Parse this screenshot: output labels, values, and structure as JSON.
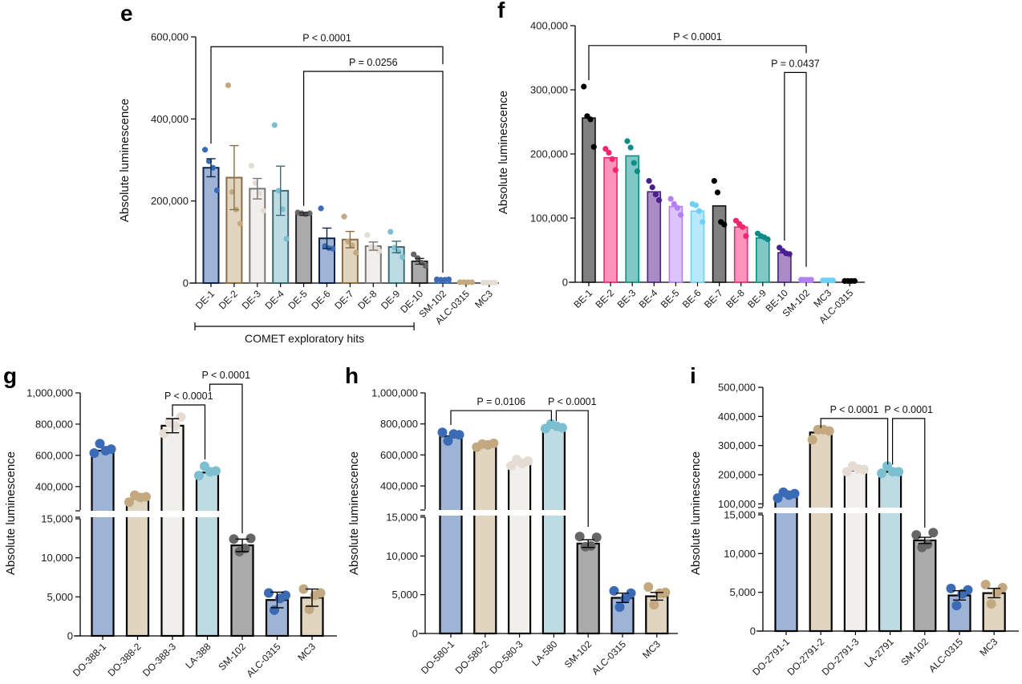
{
  "chart_data": [
    {
      "panel": "e",
      "type": "bar",
      "ylabel": "Absolute luminescence",
      "ylim": [
        0,
        600000
      ],
      "yticks": [
        0,
        200000,
        400000,
        600000
      ],
      "ytick_labels": [
        "0",
        "200,000",
        "400,000",
        "600,000"
      ],
      "categories": [
        "DE-1",
        "DE-2",
        "DE-3",
        "DE-4",
        "DE-5",
        "DE-6",
        "DE-7",
        "DE-8",
        "DE-9",
        "DE-10",
        "SM-102",
        "ALC-0315",
        "MC3"
      ],
      "values": [
        281000,
        257000,
        230000,
        225000,
        168000,
        109000,
        106000,
        90000,
        88000,
        53000,
        8000,
        2000,
        1000
      ],
      "errors": [
        22000,
        78000,
        25000,
        60000,
        3000,
        25000,
        20000,
        10000,
        14000,
        7000,
        0,
        0,
        0
      ],
      "points": [
        [
          325000,
          297000,
          281000,
          226000
        ],
        [
          482000,
          222000,
          179000,
          145000
        ],
        [
          286000,
          244000,
          218000,
          176000
        ],
        [
          385000,
          225000,
          180000,
          108000
        ],
        [
          172000,
          170000,
          168000,
          170000
        ],
        [
          182000,
          90000,
          85000,
          84000
        ],
        [
          162000,
          101000,
          92000,
          74000
        ],
        [
          117000,
          88000,
          85000,
          78000
        ],
        [
          125000,
          86000,
          77000,
          63000
        ],
        [
          70000,
          61000,
          50000,
          42000
        ],
        [
          9000,
          8000,
          8000,
          9000
        ],
        [
          2000,
          2000,
          2000,
          2000
        ],
        [
          1000,
          1000,
          1000,
          1000
        ]
      ],
      "fills": [
        "#9db4d6",
        "#e2d5bf",
        "#f1efeb",
        "#bcdbe3",
        "#aaaaaa",
        "#9db4d6",
        "#e2d5bf",
        "#f1efeb",
        "#bcdbe3",
        "#aaaaaa",
        "#9db4d6",
        "#e2d5bf",
        "#f1efeb"
      ],
      "strokes": [
        "#0d2347",
        "#8a6f46",
        "#777777",
        "#3f6b75",
        "#222222",
        "#0d2347",
        "#8a6f46",
        "#777777",
        "#3f6b75",
        "#222222",
        "#3b6bb5",
        "#c4a980",
        "#e5ddd4"
      ],
      "dots": [
        "#3b6bb5",
        "#c4a980",
        "#e5ddd4",
        "#7bbfd0",
        "#666666",
        "#3b6bb5",
        "#c4a980",
        "#e5ddd4",
        "#7bbfd0",
        "#666666",
        "#3b6bb5",
        "#c4a980",
        "#e5ddd4"
      ],
      "brackets": [
        {
          "from": 0,
          "to": 10,
          "y": 576000,
          "legs": [
            340000,
            533000
          ],
          "label": "P < 0.0001"
        },
        {
          "from": 4,
          "to": 10,
          "y": 516000,
          "legs": [
            188000,
            25000
          ],
          "label": "P = 0.0256"
        }
      ],
      "group": {
        "from": 0,
        "to": 9,
        "label": "COMET exploratory hits"
      }
    },
    {
      "panel": "f",
      "type": "bar",
      "ylabel": "Absolute luminescence",
      "ylim": [
        0,
        400000
      ],
      "yticks": [
        0,
        100000,
        200000,
        300000,
        400000
      ],
      "ytick_labels": [
        "0",
        "100,000",
        "200,000",
        "300,000",
        "400,000"
      ],
      "categories": [
        "BE-1",
        "BE-2",
        "BE-3",
        "BE-4",
        "BE-5",
        "BE-6",
        "BE-7",
        "BE-8",
        "BE-9",
        "BE-10",
        "SM-102",
        "MC3",
        "ALC-0315"
      ],
      "values": [
        256000,
        194000,
        197000,
        141000,
        118000,
        111000,
        119000,
        86000,
        69000,
        46000,
        4000,
        3000,
        2000
      ],
      "errors": [
        0,
        0,
        0,
        0,
        0,
        0,
        0,
        0,
        0,
        0,
        0,
        0,
        0
      ],
      "points": [
        [
          305000,
          259000,
          254000,
          211000
        ],
        [
          208000,
          202000,
          192000,
          175000
        ],
        [
          220000,
          210000,
          186000,
          173000
        ],
        [
          158000,
          148000,
          137000,
          128000
        ],
        [
          130000,
          122000,
          116000,
          105000
        ],
        [
          122000,
          120000,
          111000,
          94000
        ],
        [
          158000,
          140000,
          94000,
          90000
        ],
        [
          96000,
          91000,
          86000,
          72000
        ],
        [
          76000,
          72000,
          70000,
          67000
        ],
        [
          54000,
          49000,
          45000,
          44000
        ],
        [
          4000,
          4000,
          4000,
          4000
        ],
        [
          3000,
          3000,
          3000,
          3000
        ],
        [
          2000,
          2000,
          2000,
          2000
        ]
      ],
      "fills": [
        "#808080",
        "#ff93bb",
        "#80c8c6",
        "#a98cc6",
        "#dcc3fb",
        "#b8e8fb",
        "#808080",
        "#ff93bb",
        "#80c8c6",
        "#a98cc6",
        "#dcc3fb",
        "#b8e8fb",
        "#808080"
      ],
      "strokes": [
        "#111111",
        "#f0276e",
        "#0e8c85",
        "#4a1f8f",
        "#b47ef5",
        "#6fd1f7",
        "#111111",
        "#f0276e",
        "#0e8c85",
        "#4a1f8f",
        "#b47ef5",
        "#6fd1f7",
        "#111111"
      ],
      "dots": [
        "#000000",
        "#f0276e",
        "#0e8c85",
        "#4a1f8f",
        "#b47ef5",
        "#6fd1f7",
        "#000000",
        "#f0276e",
        "#0e8c85",
        "#4a1f8f",
        "#b47ef5",
        "#6fd1f7",
        "#000000"
      ],
      "brackets": [
        {
          "from": 0,
          "to": 10,
          "y": 369000,
          "legs": [
            315000,
            357000
          ],
          "label": "P < 0.0001"
        },
        {
          "from": 9,
          "to": 10,
          "y": 327000,
          "legs": [
            65000,
            24000
          ],
          "label": "P = 0.0437"
        }
      ]
    },
    {
      "panel": "g",
      "type": "bar",
      "broken_axis": true,
      "ylabel": "Absolute luminescence",
      "ylim_lower": [
        0,
        15000
      ],
      "ylim_upper": [
        250000,
        1000000
      ],
      "yticks": [
        0,
        5000,
        10000,
        15000,
        400000,
        600000,
        800000,
        1000000
      ],
      "ytick_labels": [
        "0",
        "5,000",
        "10,000",
        "15,000",
        "400,000",
        "600,000",
        "800,000",
        "1,000,000"
      ],
      "categories": [
        "DO-388-1",
        "DO-388-2",
        "DO-388-3",
        "LA-388",
        "SM-102",
        "ALC-0315",
        "MC3"
      ],
      "values": [
        630000,
        320000,
        790000,
        490000,
        11600,
        4600,
        4900
      ],
      "errors": [
        0,
        0,
        45000,
        0,
        800,
        1000,
        1100
      ],
      "points": [
        [
          615000,
          675000,
          630000,
          640000
        ],
        [
          300000,
          345000,
          330000,
          335000
        ],
        [
          740000,
          810000,
          790000,
          845000
        ],
        [
          470000,
          530000,
          495000,
          500000
        ],
        [
          12400,
          10800,
          11200,
          12500
        ],
        [
          5500,
          3300,
          4800,
          5200
        ],
        [
          6000,
          3400,
          5200,
          5500
        ]
      ],
      "fills": [
        "#9db4d6",
        "#e2d5bf",
        "#f1efeb",
        "#bcdbe3",
        "#aaaaaa",
        "#9db4d6",
        "#e2d5bf"
      ],
      "strokes": [
        "#000000",
        "#000000",
        "#000000",
        "#000000",
        "#000000",
        "#000000",
        "#000000"
      ],
      "dots": [
        "#3b6bb5",
        "#c4a980",
        "#e5ddd4",
        "#7bbfd0",
        "#666666",
        "#3b6bb5",
        "#c4a980"
      ],
      "brackets": [
        {
          "from": 2,
          "to": 3,
          "y": 923000,
          "legs": [
            850000,
            574000
          ],
          "label": "P < 0.0001"
        },
        {
          "from": 3,
          "to": 4,
          "y": 1056000,
          "legs": [
            1010000,
            13150
          ],
          "label": "P < 0.0001"
        }
      ]
    },
    {
      "panel": "h",
      "type": "bar",
      "broken_axis": true,
      "ylabel": "Absolute luminescence",
      "ylim_lower": [
        0,
        15000
      ],
      "ylim_upper": [
        250000,
        1000000
      ],
      "yticks": [
        0,
        5000,
        10000,
        15000,
        400000,
        600000,
        800000,
        1000000
      ],
      "ytick_labels": [
        "0",
        "5,000",
        "10,000",
        "15,000",
        "400,000",
        "600,000",
        "800,000",
        "1,000,000"
      ],
      "categories": [
        "DO-580-1",
        "DO-580-2",
        "DO-580-3",
        "LA-580",
        "SM-102",
        "ALC-0315",
        "MC3"
      ],
      "values": [
        720000,
        665000,
        545000,
        775000,
        11600,
        4600,
        4800
      ],
      "errors": [
        0,
        0,
        0,
        0,
        500,
        600,
        500
      ],
      "points": [
        [
          745000,
          690000,
          735000,
          730000
        ],
        [
          650000,
          670000,
          665000,
          675000
        ],
        [
          530000,
          570000,
          545000,
          560000
        ],
        [
          770000,
          800000,
          785000,
          775000
        ],
        [
          12500,
          11200,
          11300,
          12400
        ],
        [
          5500,
          3400,
          4500,
          5200
        ],
        [
          6000,
          3700,
          5200,
          5300
        ]
      ],
      "fills": [
        "#9db4d6",
        "#e2d5bf",
        "#f1efeb",
        "#bcdbe3",
        "#aaaaaa",
        "#9db4d6",
        "#e2d5bf"
      ],
      "strokes": [
        "#000000",
        "#000000",
        "#000000",
        "#000000",
        "#000000",
        "#000000",
        "#000000"
      ],
      "dots": [
        "#3b6bb5",
        "#c4a980",
        "#e5ddd4",
        "#7bbfd0",
        "#666666",
        "#3b6bb5",
        "#c4a980"
      ],
      "brackets": [
        {
          "from": 0,
          "to": 3,
          "y": 886000,
          "legs": [
            793000,
            819000
          ],
          "label": "P = 0.0106"
        },
        {
          "from": 3,
          "to": 4,
          "y": 886000,
          "legs": [
            819000,
            13760
          ],
          "label": "P < 0.0001"
        }
      ]
    },
    {
      "panel": "i",
      "type": "bar",
      "broken_axis": true,
      "ylabel": "Absolute luminescence",
      "ylim_lower": [
        0,
        15000
      ],
      "ylim_upper": [
        90000,
        500000
      ],
      "yticks": [
        0,
        5000,
        10000,
        15000,
        100000,
        200000,
        300000,
        400000,
        500000
      ],
      "ytick_labels": [
        "0",
        "5,000",
        "10,000",
        "15,000",
        "100,000",
        "200,000",
        "300,000",
        "400,000",
        "500,000"
      ],
      "categories": [
        "DO-2791-1",
        "DO-2791-2",
        "DO-2791-3",
        "LA-2791",
        "SM-102",
        "ALC-0315",
        "MC3"
      ],
      "values": [
        128000,
        345000,
        215000,
        210000,
        11700,
        4600,
        4900
      ],
      "errors": [
        0,
        0,
        0,
        0,
        400,
        600,
        600
      ],
      "points": [
        [
          120000,
          140000,
          130000,
          135000
        ],
        [
          320000,
          355000,
          355000,
          350000
        ],
        [
          210000,
          230000,
          220000,
          218000
        ],
        [
          205000,
          230000,
          210000,
          210000
        ],
        [
          12400,
          10800,
          11200,
          12700
        ],
        [
          5500,
          3300,
          4800,
          5300
        ],
        [
          6000,
          3500,
          5000,
          5600
        ]
      ],
      "fills": [
        "#9db4d6",
        "#e2d5bf",
        "#f1efeb",
        "#bcdbe3",
        "#aaaaaa",
        "#9db4d6",
        "#e2d5bf"
      ],
      "strokes": [
        "#000000",
        "#000000",
        "#000000",
        "#000000",
        "#000000",
        "#000000",
        "#000000"
      ],
      "dots": [
        "#3b6bb5",
        "#c4a980",
        "#e5ddd4",
        "#7bbfd0",
        "#666666",
        "#3b6bb5",
        "#c4a980"
      ],
      "brackets": [
        {
          "from": 1,
          "to": 3,
          "y": 393000,
          "legs": [
            360000,
            235000
          ],
          "label": "P < 0.0001"
        },
        {
          "from": 3,
          "to": 4,
          "y": 393000,
          "legs": [
            235000,
            13340
          ],
          "label": "P < 0.0001"
        }
      ]
    }
  ]
}
